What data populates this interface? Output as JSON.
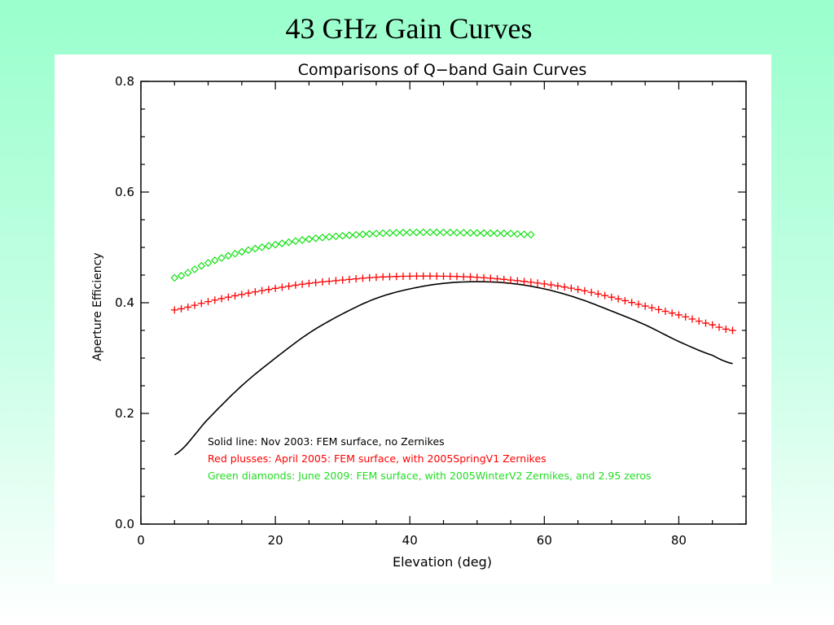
{
  "slide": {
    "title": "43 GHz Gain Curves"
  },
  "chart_data": {
    "type": "line",
    "title": "Comparisons of Q−band Gain Curves",
    "xlabel": "Elevation (deg)",
    "ylabel": "Aperture Efficiency",
    "xlim": [
      0,
      90
    ],
    "ylim": [
      0.0,
      0.8
    ],
    "xticks": [
      0,
      20,
      40,
      60,
      80
    ],
    "xtick_labels": [
      "0",
      "20",
      "40",
      "60",
      "80"
    ],
    "yticks": [
      0.0,
      0.2,
      0.4,
      0.6,
      0.8
    ],
    "ytick_labels": [
      "0.0",
      "0.2",
      "0.4",
      "0.6",
      "0.8"
    ],
    "grid": false,
    "legend_position": "bottom-left",
    "series": [
      {
        "name": "Solid line: Nov 2003: FEM surface, no Zernikes",
        "marker": "line",
        "color": "#000000",
        "x": [
          5,
          10,
          15,
          20,
          25,
          30,
          35,
          40,
          45,
          50,
          55,
          60,
          65,
          70,
          75,
          80,
          85,
          88
        ],
        "y": [
          0.125,
          0.19,
          0.25,
          0.3,
          0.345,
          0.38,
          0.408,
          0.425,
          0.435,
          0.438,
          0.435,
          0.425,
          0.408,
          0.385,
          0.36,
          0.33,
          0.305,
          0.29
        ]
      },
      {
        "name": "Red plusses: April 2005: FEM surface, with 2005SpringV1 Zernikes",
        "marker": "plus",
        "color": "#ff0000",
        "x": [
          5,
          10,
          15,
          20,
          25,
          30,
          35,
          40,
          45,
          50,
          55,
          60,
          65,
          70,
          75,
          80,
          85,
          88
        ],
        "y": [
          0.387,
          0.402,
          0.415,
          0.426,
          0.435,
          0.441,
          0.446,
          0.448,
          0.448,
          0.446,
          0.441,
          0.434,
          0.424,
          0.41,
          0.394,
          0.378,
          0.36,
          0.35
        ]
      },
      {
        "name": "Green diamonds: June 2009: FEM surface, with 2005WinterV2 Zernikes, and 2.95 zeros",
        "marker": "diamond",
        "color": "#00e000",
        "x": [
          5,
          10,
          15,
          20,
          25,
          30,
          35,
          40,
          45,
          50,
          55,
          58
        ],
        "y": [
          0.445,
          0.472,
          0.492,
          0.505,
          0.515,
          0.521,
          0.525,
          0.527,
          0.527,
          0.526,
          0.525,
          0.523
        ]
      }
    ]
  }
}
